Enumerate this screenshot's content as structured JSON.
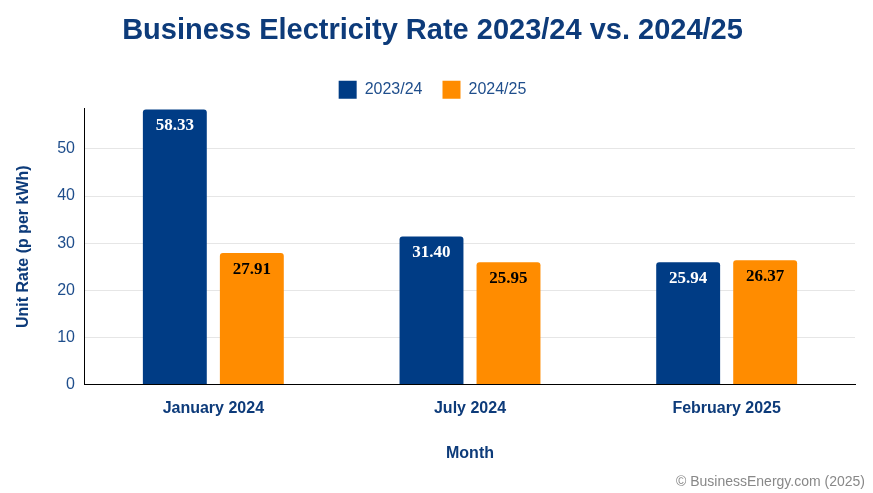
{
  "chart_data": {
    "type": "bar",
    "title": "Business Electricity Rate 2023/24 vs. 2024/25",
    "x_label": "Month",
    "y_label": "Unit Rate (p per kWh)",
    "categories": [
      "January 2024",
      "July 2024",
      "February 2025"
    ],
    "series": [
      {
        "name": "2023/24",
        "color": "#003c85",
        "values": [
          58.33,
          31.4,
          25.94
        ],
        "value_labels": [
          "58.33",
          "31.40",
          "25.94"
        ]
      },
      {
        "name": "2024/25",
        "color": "#ff8c00",
        "values": [
          27.91,
          25.95,
          26.37
        ],
        "value_labels": [
          "27.91",
          "25.95",
          "26.37"
        ]
      }
    ],
    "ylim": [
      0,
      58.5
    ],
    "yticks": [
      0,
      10,
      20,
      30,
      40,
      50
    ],
    "grid": true,
    "legend": "top",
    "data_labels": true,
    "annotations": [
      "© BusinessEnergy.com (2025)"
    ]
  }
}
